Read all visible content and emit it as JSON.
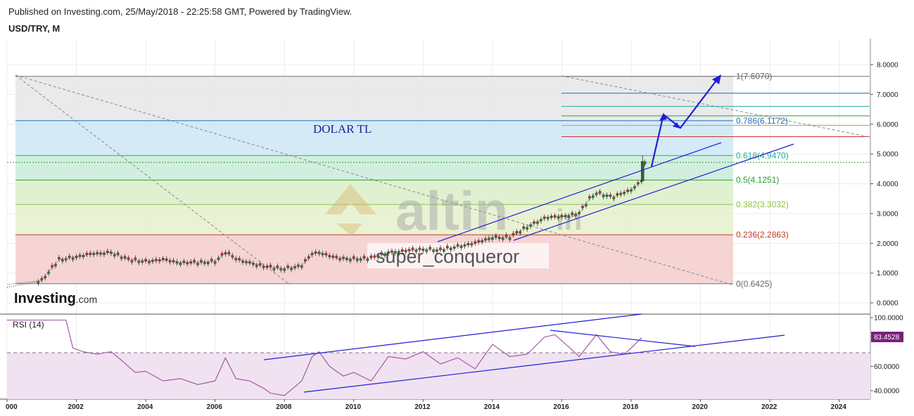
{
  "header": {
    "published": "Published on Investing.com, 25/May/2018 - 22:25:58 GMT, Powered by TradingView.",
    "symbol": "USD/TRY, M"
  },
  "annotations": {
    "dolar_tl": "DOLAR TL",
    "watermark_main": "altin",
    "watermark_tld": "in",
    "watermark_user": "super_conqueror",
    "brand": "Investing",
    "brand_suffix": ".com"
  },
  "colors": {
    "price_candle_up": "#2e7d32",
    "price_candle_down": "#c62828",
    "trend_line": "#1f1fd6",
    "rsi_line": "#9c4f9c",
    "rsi_badge": "#7b1f7b"
  },
  "chart_data": [
    {
      "type": "candlestick",
      "title": "USD/TRY, M",
      "xlabel": "",
      "ylabel": "",
      "x_ticks": [
        "000",
        "2002",
        "2004",
        "2006",
        "2008",
        "2010",
        "2012",
        "2014",
        "2016",
        "2018",
        "2020",
        "2022",
        "2024"
      ],
      "y_ticks": [
        "0.0000",
        "1.0000",
        "2.0000",
        "3.0000",
        "4.0000",
        "5.0000",
        "6.0000",
        "7.0000",
        "8.0000"
      ],
      "xlim": [
        2000,
        2024.9
      ],
      "ylim": [
        -0.2,
        8.6
      ],
      "grid": true,
      "close_series": {
        "name": "USD/TRY",
        "x": [
          2000,
          2001,
          2001.2,
          2001.5,
          2002,
          2002.5,
          2003,
          2003.5,
          2004,
          2004.5,
          2005,
          2005.5,
          2006,
          2006.3,
          2006.6,
          2007,
          2007.5,
          2008,
          2008.5,
          2008.8,
          2009,
          2009.5,
          2010,
          2010.5,
          2011,
          2011.5,
          2012,
          2012.5,
          2013,
          2013.5,
          2014,
          2014.5,
          2015,
          2015.5,
          2016,
          2016.5,
          2016.8,
          2017,
          2017.5,
          2018,
          2018.3,
          2018.4
        ],
        "y": [
          0.62,
          0.75,
          1.05,
          1.45,
          1.55,
          1.65,
          1.7,
          1.45,
          1.4,
          1.45,
          1.35,
          1.35,
          1.4,
          1.7,
          1.48,
          1.35,
          1.2,
          1.15,
          1.25,
          1.65,
          1.7,
          1.5,
          1.48,
          1.5,
          1.7,
          1.75,
          1.8,
          1.78,
          1.9,
          2.0,
          2.2,
          2.2,
          2.55,
          2.85,
          2.9,
          3.0,
          3.5,
          3.7,
          3.55,
          3.8,
          4.1,
          4.75
        ]
      },
      "fibonacci": [
        {
          "label": "0(0.6425)",
          "value": 0.6425
        },
        {
          "label": "0.236(2.2863)",
          "value": 2.2863
        },
        {
          "label": "0.382(3.3032)",
          "value": 3.3032
        },
        {
          "label": "0.5(4.1251)",
          "value": 4.1251
        },
        {
          "label": "0.618(4.9470)",
          "value": 4.947
        },
        {
          "label": "0.786(6.1172)",
          "value": 6.1172
        },
        {
          "label": "1(7.6070)",
          "value": 7.607
        }
      ],
      "current_level": 4.72
    },
    {
      "type": "line",
      "title": "RSI (14)",
      "xlabel": "",
      "ylabel": "",
      "y_ticks": [
        "40.0000",
        "60.0000",
        "100.0000"
      ],
      "ylim": [
        30,
        102
      ],
      "series": [
        {
          "name": "RSI (14)",
          "x": [
            2000,
            2001.7,
            2001.9,
            2002.2,
            2002.6,
            2003,
            2003.3,
            2003.7,
            2004,
            2004.5,
            2005,
            2005.5,
            2006,
            2006.3,
            2006.6,
            2007,
            2007.4,
            2007.6,
            2008,
            2008.5,
            2008.8,
            2009,
            2009.3,
            2009.7,
            2010,
            2010.5,
            2011,
            2011.5,
            2012,
            2012.5,
            2013,
            2013.5,
            2014,
            2014.5,
            2015,
            2015.5,
            2015.8,
            2016.2,
            2016.5,
            2017,
            2017.4,
            2017.8,
            2018,
            2018.3
          ],
          "y": [
            98,
            98,
            75,
            72,
            70,
            72,
            65,
            55,
            56,
            48,
            50,
            45,
            48,
            67,
            50,
            48,
            42,
            38,
            36,
            48,
            68,
            72,
            60,
            52,
            55,
            48,
            68,
            66,
            72,
            62,
            67,
            58,
            78,
            68,
            70,
            84,
            86,
            76,
            68,
            86,
            72,
            70,
            75,
            83.4528
          ]
        }
      ],
      "current_value": "83.4528",
      "reference_level": 70
    }
  ]
}
